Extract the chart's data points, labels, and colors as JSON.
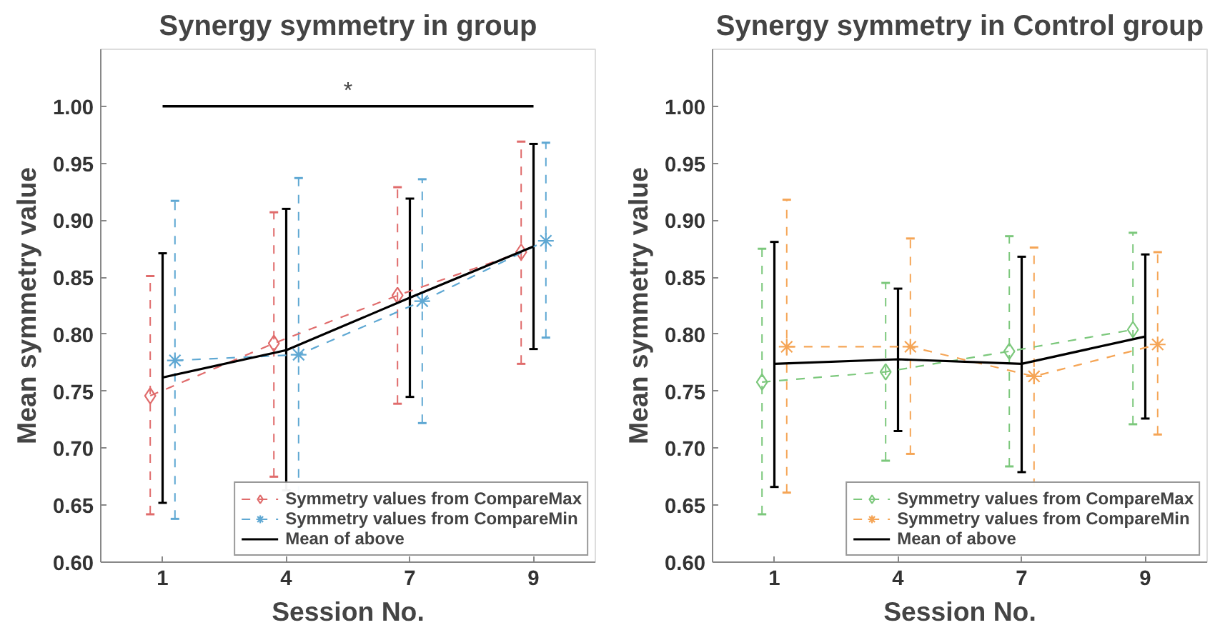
{
  "chart_data": [
    {
      "type": "line",
      "title": "Synergy symmetry in group",
      "xlabel": "Session No.",
      "ylabel": "Mean symmetry value",
      "categories": [
        "1",
        "4",
        "7",
        "9"
      ],
      "ylim": [
        0.6,
        1.05
      ],
      "yticks": [
        {
          "value": 0.6,
          "label": "0.60"
        },
        {
          "value": 0.65,
          "label": "0.65"
        },
        {
          "value": 0.7,
          "label": "0.70"
        },
        {
          "value": 0.75,
          "label": "0.75"
        },
        {
          "value": 0.8,
          "label": "0.80"
        },
        {
          "value": 0.85,
          "label": "0.85"
        },
        {
          "value": 0.9,
          "label": "0.90"
        },
        {
          "value": 0.95,
          "label": "0.95"
        },
        {
          "value": 1.0,
          "label": "1.00"
        }
      ],
      "grid": false,
      "legend": "bottom right",
      "ref_lines": [
        {
          "axis": "y",
          "value": 1.0,
          "label": "*",
          "color": "#000000"
        }
      ],
      "series": [
        {
          "name": "Symmetry values from CompareMax",
          "color": "#e06c6c",
          "marker": "diamond",
          "line_style": "dashed",
          "values": [
            0.746,
            0.792,
            0.834,
            0.872
          ],
          "errors": [
            [
              0.642,
              0.851
            ],
            [
              0.675,
              0.907
            ],
            [
              0.739,
              0.929
            ],
            [
              0.774,
              0.969
            ]
          ]
        },
        {
          "name": "Symmetry values from CompareMin",
          "color": "#5fa8d3",
          "marker": "cross",
          "line_style": "dashed",
          "values": [
            0.777,
            0.782,
            0.829,
            0.882
          ],
          "errors": [
            [
              0.638,
              0.917
            ],
            [
              0.629,
              0.937
            ],
            [
              0.722,
              0.936
            ],
            [
              0.797,
              0.968
            ]
          ]
        },
        {
          "name": "Mean of above",
          "color": "#000000",
          "marker": "none",
          "line_style": "solid",
          "values": [
            0.762,
            0.786,
            0.832,
            0.877
          ],
          "errors": [
            [
              0.652,
              0.871
            ],
            [
              0.663,
              0.91
            ],
            [
              0.745,
              0.919
            ],
            [
              0.787,
              0.967
            ]
          ]
        }
      ]
    },
    {
      "type": "line",
      "title": "Synergy symmetry in Control group",
      "xlabel": "Session No.",
      "ylabel": "Mean symmetry value",
      "categories": [
        "1",
        "4",
        "7",
        "9"
      ],
      "ylim": [
        0.6,
        1.05
      ],
      "yticks": [
        {
          "value": 0.6,
          "label": "0.60"
        },
        {
          "value": 0.65,
          "label": "0.65"
        },
        {
          "value": 0.7,
          "label": "0.70"
        },
        {
          "value": 0.75,
          "label": "0.75"
        },
        {
          "value": 0.8,
          "label": "0.80"
        },
        {
          "value": 0.85,
          "label": "0.85"
        },
        {
          "value": 0.9,
          "label": "0.90"
        },
        {
          "value": 0.95,
          "label": "0.95"
        },
        {
          "value": 1.0,
          "label": "1.00"
        }
      ],
      "grid": false,
      "legend": "bottom right",
      "series": [
        {
          "name": "Symmetry values from CompareMax",
          "color": "#7cc87c",
          "marker": "diamond",
          "line_style": "dashed",
          "values": [
            0.758,
            0.767,
            0.785,
            0.804
          ],
          "errors": [
            [
              0.642,
              0.875
            ],
            [
              0.689,
              0.845
            ],
            [
              0.684,
              0.886
            ],
            [
              0.721,
              0.889
            ]
          ]
        },
        {
          "name": "Symmetry values from CompareMin",
          "color": "#f5a556",
          "marker": "cross",
          "line_style": "dashed",
          "values": [
            0.789,
            0.789,
            0.763,
            0.791
          ],
          "errors": [
            [
              0.661,
              0.918
            ],
            [
              0.695,
              0.884
            ],
            [
              0.651,
              0.876
            ],
            [
              0.712,
              0.872
            ]
          ]
        },
        {
          "name": "Mean of above",
          "color": "#000000",
          "marker": "none",
          "line_style": "solid",
          "values": [
            0.774,
            0.778,
            0.774,
            0.798
          ],
          "errors": [
            [
              0.666,
              0.881
            ],
            [
              0.715,
              0.84
            ],
            [
              0.679,
              0.868
            ],
            [
              0.726,
              0.87
            ]
          ]
        }
      ]
    }
  ]
}
